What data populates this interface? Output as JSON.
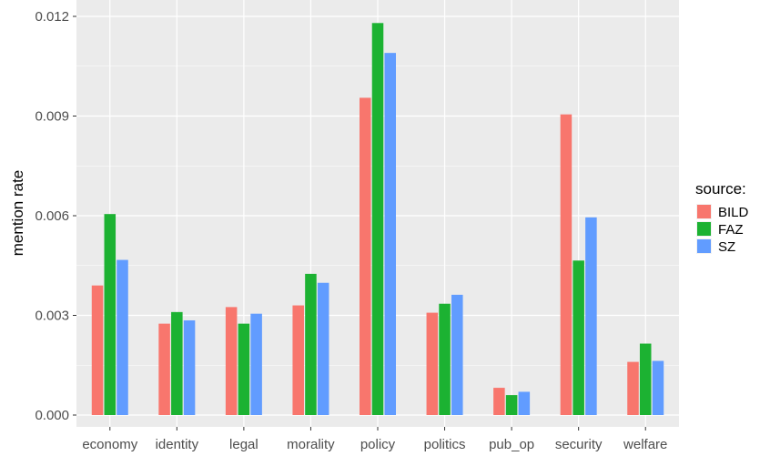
{
  "chart_data": {
    "type": "bar",
    "title": "",
    "xlabel": "",
    "ylabel": "mention rate",
    "ylim": [
      0,
      0.0121
    ],
    "yticks": [
      0.0,
      0.003,
      0.006,
      0.009,
      0.012
    ],
    "ytick_labels": [
      "0.000",
      "0.003",
      "0.006",
      "0.009",
      "0.012"
    ],
    "categories": [
      "economy",
      "identity",
      "legal",
      "morality",
      "policy",
      "politics",
      "pub_op",
      "security",
      "welfare"
    ],
    "series": [
      {
        "name": "BILD",
        "color": "#F8766D",
        "values": [
          0.0039,
          0.00275,
          0.00325,
          0.0033,
          0.00955,
          0.00308,
          0.00082,
          0.00905,
          0.0016
        ]
      },
      {
        "name": "FAZ",
        "color": "#1CB232",
        "values": [
          0.00605,
          0.0031,
          0.00275,
          0.00425,
          0.0118,
          0.00335,
          0.0006,
          0.00465,
          0.00215
        ]
      },
      {
        "name": "SZ",
        "color": "#619CFF",
        "values": [
          0.00467,
          0.00285,
          0.00305,
          0.00398,
          0.0109,
          0.00362,
          0.0007,
          0.00595,
          0.00163
        ]
      }
    ],
    "grid": true,
    "legend": {
      "title": "source:",
      "position": "right"
    },
    "panel_color": "#EBEBEB",
    "grid_color": "#FFFFFF"
  }
}
